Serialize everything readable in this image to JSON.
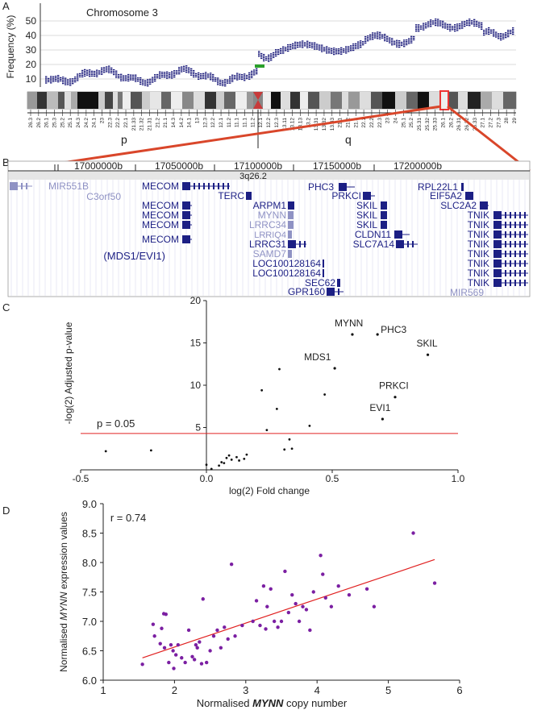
{
  "panels": {
    "a": "A",
    "b": "B",
    "c": "C",
    "d": "D"
  },
  "colors": {
    "navy": "#1a1a7a",
    "gene_dark": "#1c1f84",
    "gene_light": "#8f92c4",
    "red": "#d9462a",
    "green": "#2aa02a",
    "purple": "#7b1fa2",
    "fit": "#e02020"
  },
  "panel_a": {
    "title": "Chromosome 3",
    "ylabel": "Frequency (%)",
    "yticks": [
      10,
      20,
      30,
      40,
      50
    ],
    "arm_p": "p",
    "arm_q": "q",
    "bands": [
      "26.3",
      "26.2",
      "26.1",
      "25.3",
      "25.2",
      "25.1",
      "24.3",
      "24.2",
      "24.1",
      "23",
      "22.3",
      "22.2",
      "22.1",
      "21.33",
      "21.32",
      "21.31",
      "21.2",
      "21.1",
      "14.3",
      "14.2",
      "14.1",
      "13",
      "12.3",
      "12.2",
      "12.1",
      "11.2",
      "11.1",
      "11.1",
      "11.2",
      "12.1",
      "12.2",
      "12.3",
      "13.11",
      "13.12",
      "13.13",
      "13.2",
      "13.31",
      "13.32",
      "13.33",
      "21.1",
      "21.2",
      "21.3",
      "22.1",
      "22.2",
      "22.3",
      "23",
      "24",
      "25.1",
      "25.2",
      "25.31",
      "25.32",
      "25.33",
      "26.1",
      "26.2",
      "26.31",
      "26.32",
      "26.33",
      "27.1",
      "27.2",
      "27.3",
      "28",
      "29"
    ]
  },
  "panel_b": {
    "coordinates": [
      "17000000b",
      "17050000b",
      "17100000b",
      "17150000b",
      "17200000b"
    ],
    "band": "3q26.2",
    "genes": [
      {
        "name": "MIR551B",
        "shade": "light"
      },
      {
        "name": "MECOM",
        "shade": "dark"
      },
      {
        "name": "C3orf50",
        "shade": "light"
      },
      {
        "name": "MECOM",
        "shade": "dark"
      },
      {
        "name": "MECOM",
        "shade": "dark"
      },
      {
        "name": "MECOM",
        "shade": "dark"
      },
      {
        "name": "MECOM",
        "shade": "dark"
      },
      {
        "name": "(MDS1/EVI1)",
        "shade": "dark"
      },
      {
        "name": "TERC",
        "shade": "dark"
      },
      {
        "name": "ARPM1",
        "shade": "dark"
      },
      {
        "name": "MYNN",
        "shade": "light"
      },
      {
        "name": "LRRC34",
        "shade": "light"
      },
      {
        "name": "LRRIQ4",
        "shade": "light"
      },
      {
        "name": "LRRC31",
        "shade": "dark"
      },
      {
        "name": "SAMD7",
        "shade": "light"
      },
      {
        "name": "LOC100128164",
        "shade": "dark"
      },
      {
        "name": "LOC100128164",
        "shade": "dark"
      },
      {
        "name": "SEC62",
        "shade": "dark"
      },
      {
        "name": "GPR160",
        "shade": "dark"
      },
      {
        "name": "PHC3",
        "shade": "dark"
      },
      {
        "name": "PRKCI",
        "shade": "dark"
      },
      {
        "name": "SKIL",
        "shade": "dark"
      },
      {
        "name": "SKIL",
        "shade": "dark"
      },
      {
        "name": "SKIL",
        "shade": "dark"
      },
      {
        "name": "CLDN11",
        "shade": "dark"
      },
      {
        "name": "SLC7A14",
        "shade": "dark"
      },
      {
        "name": "RPL22L1",
        "shade": "dark"
      },
      {
        "name": "EIF5A2",
        "shade": "dark"
      },
      {
        "name": "SLC2A2",
        "shade": "dark"
      },
      {
        "name": "TNIK",
        "shade": "dark"
      },
      {
        "name": "TNIK",
        "shade": "dark"
      },
      {
        "name": "TNIK",
        "shade": "dark"
      },
      {
        "name": "TNIK",
        "shade": "dark"
      },
      {
        "name": "TNIK",
        "shade": "dark"
      },
      {
        "name": "TNIK",
        "shade": "dark"
      },
      {
        "name": "TNIK",
        "shade": "dark"
      },
      {
        "name": "TNIK",
        "shade": "dark"
      },
      {
        "name": "MIR569",
        "shade": "light"
      }
    ]
  },
  "chart_data": [
    {
      "type": "scatter",
      "panel": "C",
      "title": "",
      "xlabel": "log(2) Fold change",
      "ylabel": "-log(2) Adjusted p-value",
      "xlim": [
        -0.5,
        1.0
      ],
      "ylim": [
        0,
        20
      ],
      "xticks": [
        -0.5,
        0.0,
        0.5,
        1.0
      ],
      "xtick_labels": [
        "-0.5",
        "0.0",
        "0.5",
        "1.0"
      ],
      "yticks": [
        5,
        10,
        15,
        20
      ],
      "threshold": {
        "y": 4.3,
        "label": "p = 0.05"
      },
      "points": [
        {
          "x": -0.4,
          "y": 2.2
        },
        {
          "x": -0.22,
          "y": 2.3
        },
        {
          "x": 0.0,
          "y": 0.6
        },
        {
          "x": 0.02,
          "y": 0.1
        },
        {
          "x": 0.05,
          "y": 0.5
        },
        {
          "x": 0.06,
          "y": 0.9
        },
        {
          "x": 0.07,
          "y": 0.8
        },
        {
          "x": 0.08,
          "y": 1.4
        },
        {
          "x": 0.09,
          "y": 1.7
        },
        {
          "x": 0.1,
          "y": 1.2
        },
        {
          "x": 0.12,
          "y": 1.5
        },
        {
          "x": 0.13,
          "y": 1.1
        },
        {
          "x": 0.15,
          "y": 1.3
        },
        {
          "x": 0.16,
          "y": 1.8
        },
        {
          "x": 0.22,
          "y": 9.4
        },
        {
          "x": 0.24,
          "y": 4.7
        },
        {
          "x": 0.28,
          "y": 7.2
        },
        {
          "x": 0.29,
          "y": 11.9
        },
        {
          "x": 0.31,
          "y": 2.4
        },
        {
          "x": 0.33,
          "y": 3.6
        },
        {
          "x": 0.34,
          "y": 2.5
        },
        {
          "x": 0.41,
          "y": 5.2
        },
        {
          "x": 0.47,
          "y": 8.9
        }
      ],
      "labeled_points": [
        {
          "label": "MYNN",
          "x": 0.58,
          "y": 16.0
        },
        {
          "label": "PHC3",
          "x": 0.68,
          "y": 16.0
        },
        {
          "label": "SKIL",
          "x": 0.88,
          "y": 13.6
        },
        {
          "label": "MDS1",
          "x": 0.51,
          "y": 12.0
        },
        {
          "label": "PRKCI",
          "x": 0.75,
          "y": 8.6
        },
        {
          "label": "EVI1",
          "x": 0.7,
          "y": 6.0
        }
      ]
    },
    {
      "type": "scatter",
      "panel": "D",
      "title": "",
      "xlabel_prefix": "Normalised ",
      "xlabel_gene": "MYNN",
      "xlabel_suffix": " copy number",
      "ylabel_prefix": "Normalised ",
      "ylabel_gene": "MYNN",
      "ylabel_suffix": " expression values",
      "annotation": "r = 0.74",
      "xlim": [
        1,
        6
      ],
      "ylim": [
        6.0,
        9.0
      ],
      "xticks": [
        1,
        2,
        3,
        4,
        5,
        6
      ],
      "yticks": [
        6.0,
        6.5,
        7.0,
        7.5,
        8.0,
        8.5,
        9.0
      ],
      "ytick_labels": [
        "6.0",
        "6.5",
        "7.0",
        "7.5",
        "8.0",
        "8.5",
        "9.0"
      ],
      "fit_line": {
        "x": [
          1.55,
          5.65
        ],
        "y": [
          6.38,
          8.05
        ]
      },
      "points": [
        {
          "x": 1.55,
          "y": 6.27
        },
        {
          "x": 1.7,
          "y": 6.95
        },
        {
          "x": 1.72,
          "y": 6.75
        },
        {
          "x": 1.8,
          "y": 6.62
        },
        {
          "x": 1.82,
          "y": 6.88
        },
        {
          "x": 1.85,
          "y": 7.13
        },
        {
          "x": 1.86,
          "y": 6.55
        },
        {
          "x": 1.88,
          "y": 7.12
        },
        {
          "x": 1.92,
          "y": 6.3
        },
        {
          "x": 1.95,
          "y": 6.6
        },
        {
          "x": 1.98,
          "y": 6.5
        },
        {
          "x": 1.99,
          "y": 6.2
        },
        {
          "x": 2.02,
          "y": 6.43
        },
        {
          "x": 2.05,
          "y": 6.6
        },
        {
          "x": 2.1,
          "y": 6.38
        },
        {
          "x": 2.15,
          "y": 6.3
        },
        {
          "x": 2.2,
          "y": 6.85
        },
        {
          "x": 2.25,
          "y": 6.4
        },
        {
          "x": 2.28,
          "y": 6.35
        },
        {
          "x": 2.3,
          "y": 6.6
        },
        {
          "x": 2.32,
          "y": 6.55
        },
        {
          "x": 2.35,
          "y": 6.65
        },
        {
          "x": 2.38,
          "y": 6.28
        },
        {
          "x": 2.4,
          "y": 7.38
        },
        {
          "x": 2.45,
          "y": 6.3
        },
        {
          "x": 2.5,
          "y": 6.5
        },
        {
          "x": 2.55,
          "y": 6.75
        },
        {
          "x": 2.6,
          "y": 6.85
        },
        {
          "x": 2.65,
          "y": 6.55
        },
        {
          "x": 2.7,
          "y": 6.9
        },
        {
          "x": 2.75,
          "y": 6.7
        },
        {
          "x": 2.8,
          "y": 7.97
        },
        {
          "x": 2.85,
          "y": 6.75
        },
        {
          "x": 2.95,
          "y": 6.93
        },
        {
          "x": 3.1,
          "y": 7.0
        },
        {
          "x": 3.15,
          "y": 7.35
        },
        {
          "x": 3.2,
          "y": 6.93
        },
        {
          "x": 3.25,
          "y": 7.6
        },
        {
          "x": 3.28,
          "y": 6.87
        },
        {
          "x": 3.3,
          "y": 7.25
        },
        {
          "x": 3.35,
          "y": 7.55
        },
        {
          "x": 3.4,
          "y": 7.0
        },
        {
          "x": 3.45,
          "y": 6.9
        },
        {
          "x": 3.5,
          "y": 7.0
        },
        {
          "x": 3.55,
          "y": 7.85
        },
        {
          "x": 3.6,
          "y": 7.15
        },
        {
          "x": 3.65,
          "y": 7.45
        },
        {
          "x": 3.7,
          "y": 7.3
        },
        {
          "x": 3.75,
          "y": 7.0
        },
        {
          "x": 3.8,
          "y": 7.25
        },
        {
          "x": 3.85,
          "y": 7.2
        },
        {
          "x": 3.9,
          "y": 6.85
        },
        {
          "x": 3.95,
          "y": 7.5
        },
        {
          "x": 4.05,
          "y": 8.12
        },
        {
          "x": 4.08,
          "y": 7.8
        },
        {
          "x": 4.12,
          "y": 7.4
        },
        {
          "x": 4.2,
          "y": 7.25
        },
        {
          "x": 4.3,
          "y": 7.6
        },
        {
          "x": 4.45,
          "y": 7.45
        },
        {
          "x": 4.7,
          "y": 7.55
        },
        {
          "x": 4.8,
          "y": 7.25
        },
        {
          "x": 5.35,
          "y": 8.5
        },
        {
          "x": 5.65,
          "y": 7.65
        }
      ]
    }
  ]
}
